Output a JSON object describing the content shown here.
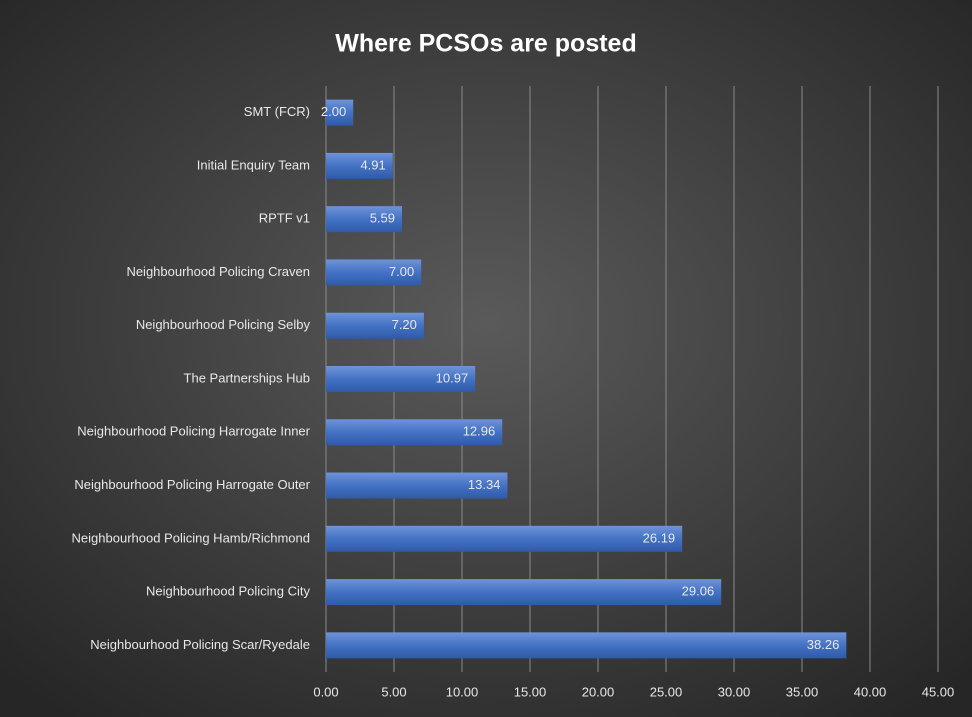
{
  "chart_data": {
    "type": "barh",
    "title": "Where PCSOs are posted",
    "categories": [
      "SMT (FCR)",
      "Initial Enquiry Team",
      "RPTF v1",
      "Neighbourhood Policing Craven",
      "Neighbourhood Policing Selby",
      "The Partnerships Hub",
      "Neighbourhood Policing Harrogate Inner",
      "Neighbourhood Policing Harrogate Outer",
      "Neighbourhood Policing Hamb/Richmond",
      "Neighbourhood Policing City",
      "Neighbourhood Policing Scar/Ryedale"
    ],
    "values": [
      2.0,
      4.91,
      5.59,
      7.0,
      7.2,
      10.97,
      12.96,
      13.34,
      26.19,
      29.06,
      38.26
    ],
    "value_labels": [
      "2.00",
      "4.91",
      "5.59",
      "7.00",
      "7.20",
      "10.97",
      "12.96",
      "13.34",
      "26.19",
      "29.06",
      "38.26"
    ],
    "color": "#4472c4",
    "xlim": [
      0,
      45
    ],
    "xticks": [
      {
        "value": 0,
        "label": "0.00"
      },
      {
        "value": 5,
        "label": "5.00"
      },
      {
        "value": 10,
        "label": "10.00"
      },
      {
        "value": 15,
        "label": "15.00"
      },
      {
        "value": 20,
        "label": "20.00"
      },
      {
        "value": 25,
        "label": "25.00"
      },
      {
        "value": 30,
        "label": "30.00"
      },
      {
        "value": 35,
        "label": "35.00"
      },
      {
        "value": 40,
        "label": "40.00"
      },
      {
        "value": 45,
        "label": "45.00"
      }
    ],
    "grid": true
  }
}
